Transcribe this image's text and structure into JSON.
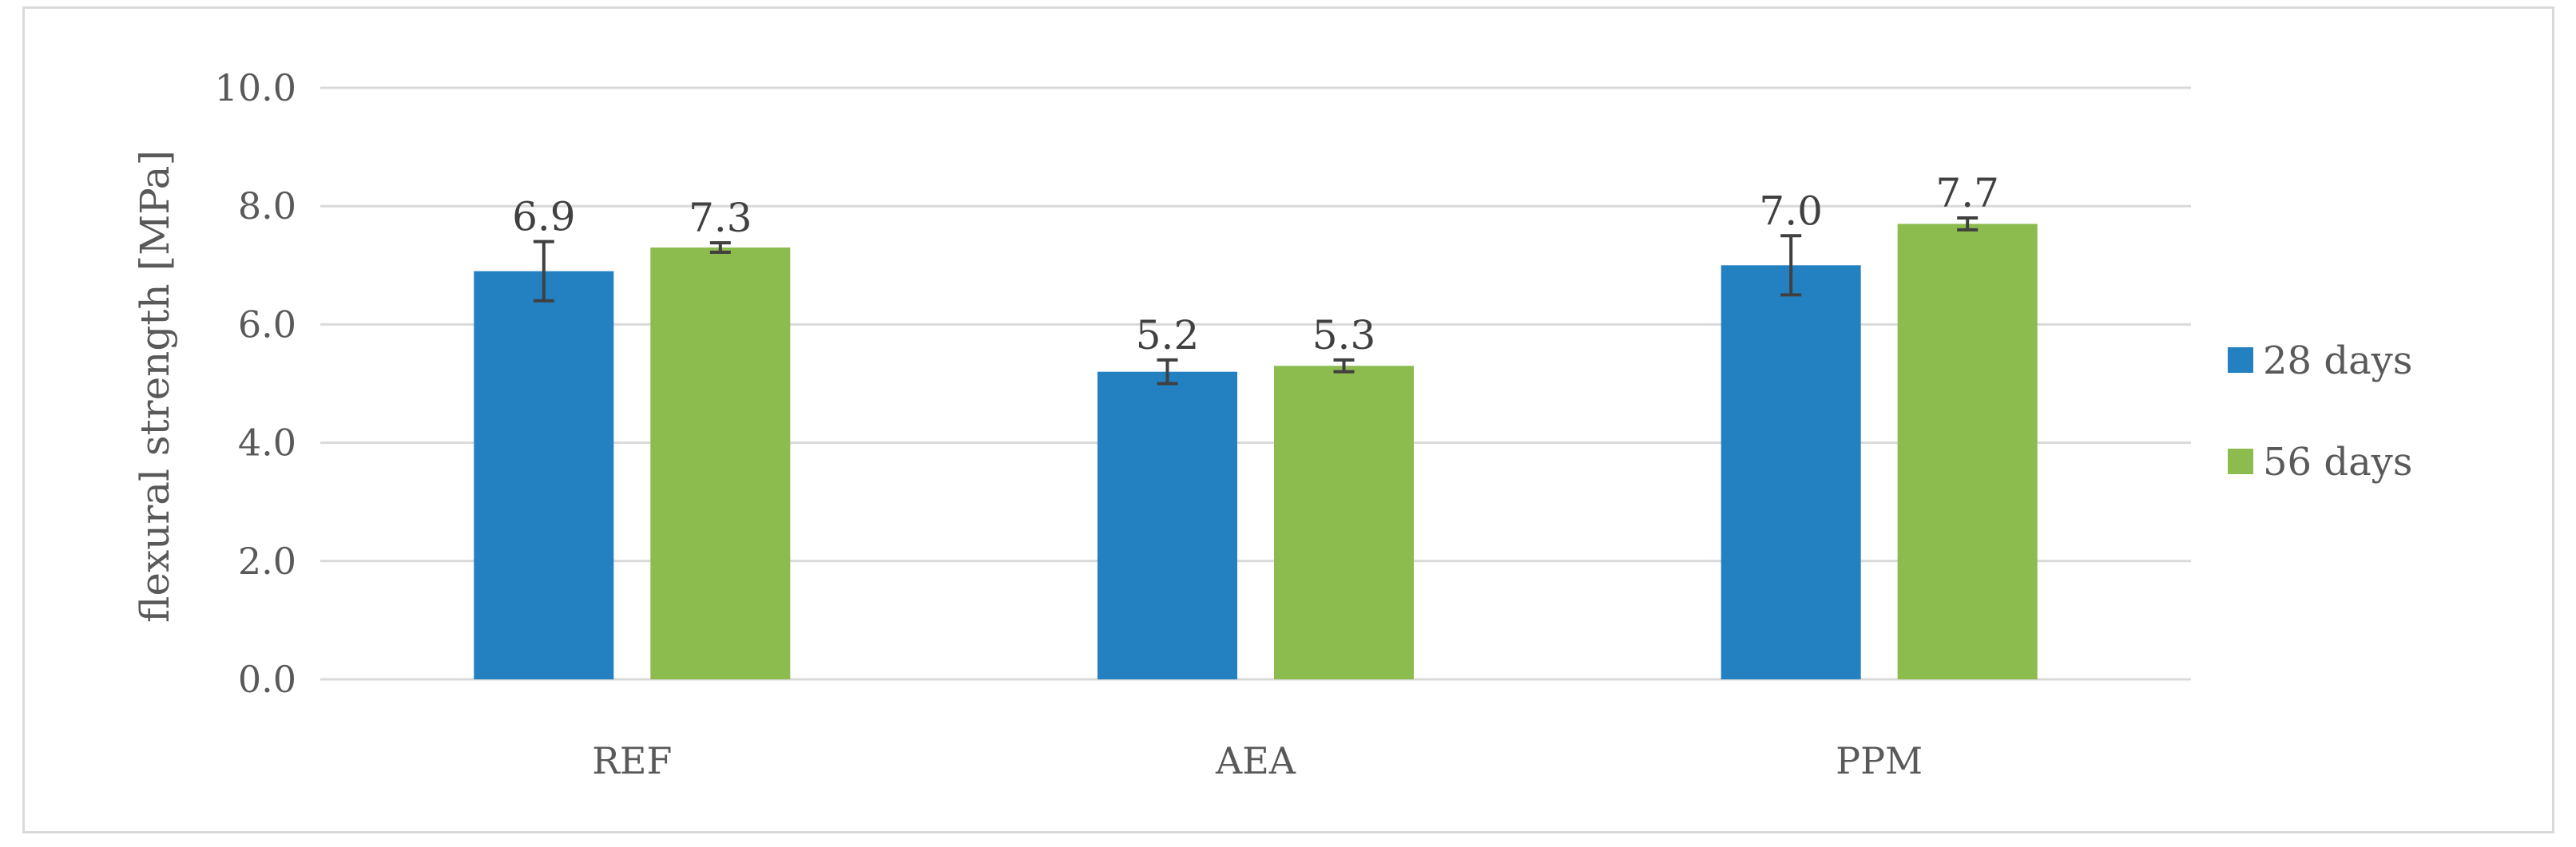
{
  "chart_data": {
    "type": "bar",
    "categories": [
      "REF",
      "AEA",
      "PPM"
    ],
    "series": [
      {
        "name": "28 days",
        "color": "#2381c2",
        "values": [
          6.9,
          5.2,
          7.0
        ],
        "error": [
          0.5,
          0.2,
          0.5
        ]
      },
      {
        "name": "56 days",
        "color": "#8cbb4e",
        "values": [
          7.3,
          5.3,
          7.7
        ],
        "error": [
          0.08,
          0.1,
          0.1
        ]
      }
    ],
    "data_labels": [
      [
        "6.9",
        "5.2",
        "7.0"
      ],
      [
        "7.3",
        "5.3",
        "7.7"
      ]
    ],
    "ylabel": "flexural strength [MPa]",
    "xlabel": "",
    "ylim": [
      0,
      10
    ],
    "yticks": [
      "0.0",
      "2.0",
      "4.0",
      "6.0",
      "8.0",
      "10.0"
    ],
    "grid": true,
    "legend": "right",
    "gridline_color": "#d9d9d9",
    "errorbar_color": "#404040"
  }
}
